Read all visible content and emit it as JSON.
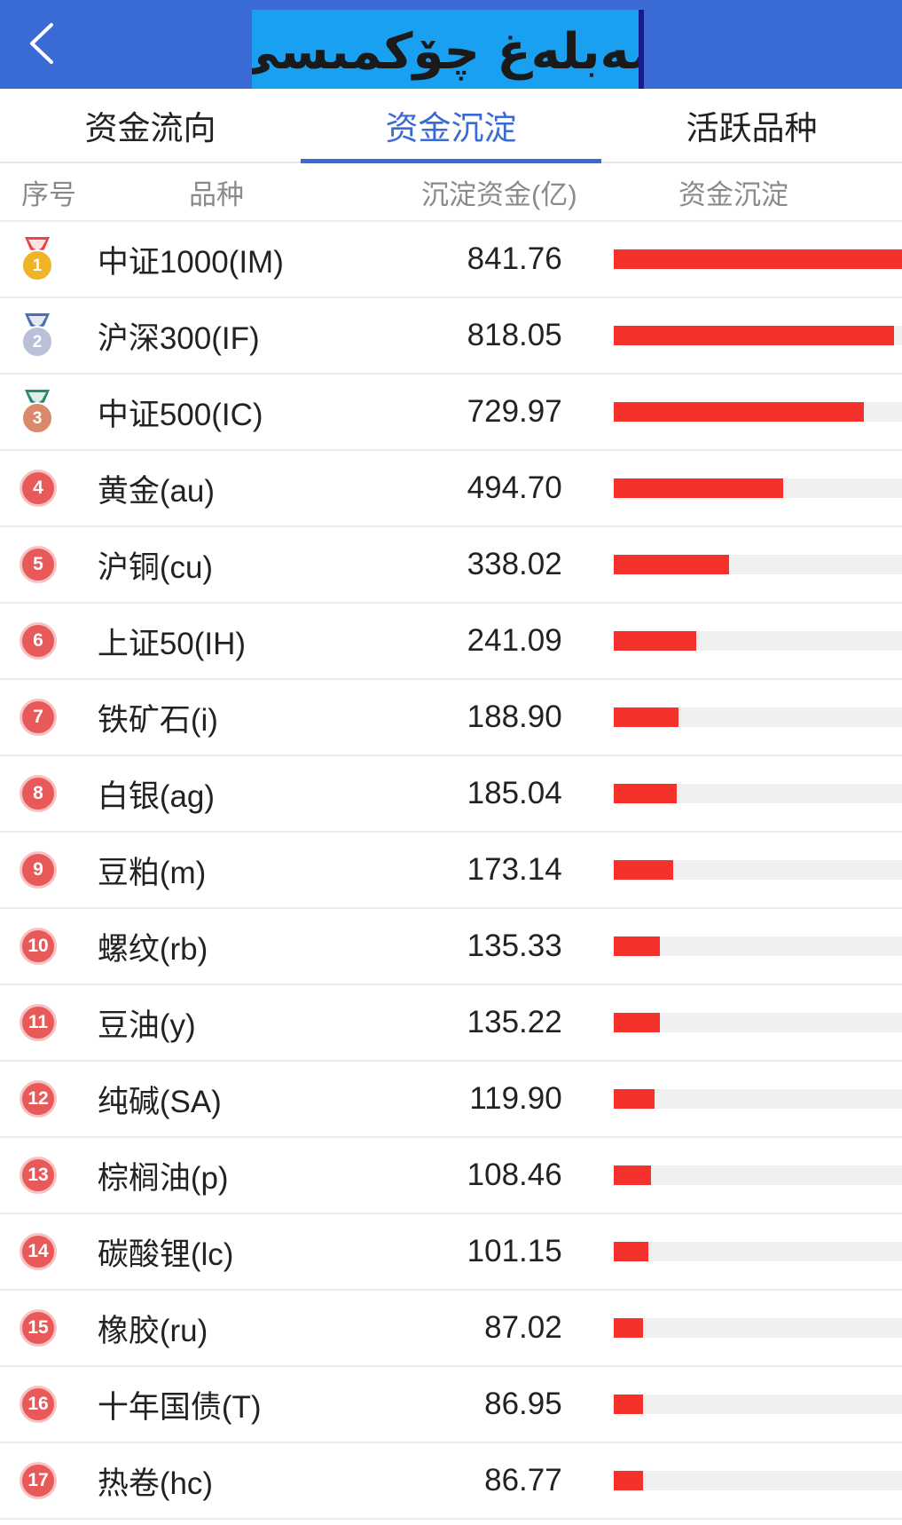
{
  "header": {
    "title": "مەبلەغ چۆكمىسى"
  },
  "tabs": [
    {
      "label": "资金流向",
      "active": false
    },
    {
      "label": "资金沉淀",
      "active": true
    },
    {
      "label": "活跃品种",
      "active": false
    }
  ],
  "columns": {
    "rank": "序号",
    "name": "品种",
    "value": "沉淀资金(亿)",
    "bar": "资金沉淀"
  },
  "colors": {
    "header_bg": "#3a6ad3",
    "bar": "#f4322b",
    "badge": "#e8595a",
    "gold": "#f0b429",
    "silver": "#b9c0d8",
    "bronze": "#d98a6a"
  },
  "rows": [
    {
      "rank": "1",
      "icon": "gold-medal-icon",
      "name": "中证1000(IM)",
      "value": "841.76",
      "fraction": 1.0
    },
    {
      "rank": "2",
      "icon": "silver-medal-icon",
      "name": "沪深300(IF)",
      "value": "818.05",
      "fraction": 0.972
    },
    {
      "rank": "3",
      "icon": "bronze-medal-icon",
      "name": "中证500(IC)",
      "value": "729.97",
      "fraction": 0.867
    },
    {
      "rank": "4",
      "icon": "rank-badge-icon",
      "name": "黄金(au)",
      "value": "494.70",
      "fraction": 0.588
    },
    {
      "rank": "5",
      "icon": "rank-badge-icon",
      "name": "沪铜(cu)",
      "value": "338.02",
      "fraction": 0.402
    },
    {
      "rank": "6",
      "icon": "rank-badge-icon",
      "name": "上证50(IH)",
      "value": "241.09",
      "fraction": 0.286
    },
    {
      "rank": "7",
      "icon": "rank-badge-icon",
      "name": "铁矿石(i)",
      "value": "188.90",
      "fraction": 0.224
    },
    {
      "rank": "8",
      "icon": "rank-badge-icon",
      "name": "白银(ag)",
      "value": "185.04",
      "fraction": 0.22
    },
    {
      "rank": "9",
      "icon": "rank-badge-icon",
      "name": "豆粕(m)",
      "value": "173.14",
      "fraction": 0.206
    },
    {
      "rank": "10",
      "icon": "rank-badge-icon",
      "name": "螺纹(rb)",
      "value": "135.33",
      "fraction": 0.161
    },
    {
      "rank": "11",
      "icon": "rank-badge-icon",
      "name": "豆油(y)",
      "value": "135.22",
      "fraction": 0.161
    },
    {
      "rank": "12",
      "icon": "rank-badge-icon",
      "name": "纯碱(SA)",
      "value": "119.90",
      "fraction": 0.142
    },
    {
      "rank": "13",
      "icon": "rank-badge-icon",
      "name": "棕榈油(p)",
      "value": "108.46",
      "fraction": 0.129
    },
    {
      "rank": "14",
      "icon": "rank-badge-icon",
      "name": "碳酸锂(lc)",
      "value": "101.15",
      "fraction": 0.12
    },
    {
      "rank": "15",
      "icon": "rank-badge-icon",
      "name": "橡胶(ru)",
      "value": "87.02",
      "fraction": 0.103
    },
    {
      "rank": "16",
      "icon": "rank-badge-icon",
      "name": "十年国债(T)",
      "value": "86.95",
      "fraction": 0.103
    },
    {
      "rank": "17",
      "icon": "rank-badge-icon",
      "name": "热卷(hc)",
      "value": "86.77",
      "fraction": 0.103
    }
  ]
}
